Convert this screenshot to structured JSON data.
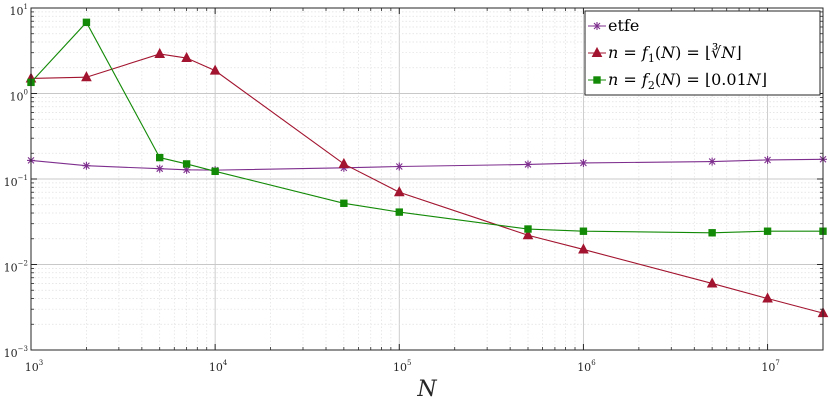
{
  "chart_data": {
    "type": "line",
    "x_scale": "log",
    "y_scale": "log",
    "xlim": [
      1000,
      20000000
    ],
    "ylim": [
      0.001,
      10
    ],
    "grid": true,
    "minor_grid": true,
    "legend_position": "top-right",
    "xlabel": "N",
    "ylabel": "",
    "title": "",
    "x_ticks": [
      {
        "value": 1000,
        "base": "10",
        "exp": "3"
      },
      {
        "value": 10000,
        "base": "10",
        "exp": "4"
      },
      {
        "value": 100000,
        "base": "10",
        "exp": "5"
      },
      {
        "value": 1000000,
        "base": "10",
        "exp": "6"
      },
      {
        "value": 10000000,
        "base": "10",
        "exp": "7"
      }
    ],
    "y_ticks": [
      {
        "value": 0.001,
        "base": "10",
        "exp": "−3"
      },
      {
        "value": 0.01,
        "base": "10",
        "exp": "−2"
      },
      {
        "value": 0.1,
        "base": "10",
        "exp": "−1"
      },
      {
        "value": 1,
        "base": "10",
        "exp": "0"
      },
      {
        "value": 10,
        "base": "10",
        "exp": "1"
      }
    ],
    "series": [
      {
        "name": "etfe",
        "color": "#7e2f8e",
        "marker": "star",
        "x": [
          1000,
          2000,
          5000,
          7000,
          10000,
          50000,
          100000,
          500000,
          1000000,
          5000000,
          10000000,
          20000000
        ],
        "y": [
          0.165,
          0.143,
          0.132,
          0.128,
          0.127,
          0.135,
          0.14,
          0.148,
          0.154,
          0.16,
          0.167,
          0.17
        ]
      },
      {
        "name": "n = f1(N) = floor(cbrt(N))",
        "color": "#a2142f",
        "marker": "triangle",
        "x": [
          1000,
          2000,
          5000,
          7000,
          10000,
          50000,
          100000,
          500000,
          1000000,
          5000000,
          10000000,
          20000000
        ],
        "y": [
          1.5,
          1.55,
          2.9,
          2.6,
          1.85,
          0.15,
          0.07,
          0.022,
          0.015,
          0.006,
          0.004,
          0.0027
        ]
      },
      {
        "name": "n = f2(N) = floor(0.01N)",
        "color": "#138a07",
        "marker": "square",
        "x": [
          1000,
          2000,
          5000,
          7000,
          10000,
          50000,
          100000,
          500000,
          1000000,
          5000000,
          10000000,
          20000000
        ],
        "y": [
          1.35,
          6.8,
          0.178,
          0.15,
          0.123,
          0.052,
          0.041,
          0.026,
          0.0245,
          0.0235,
          0.0245,
          0.0245
        ]
      }
    ]
  },
  "legend": {
    "entries": [
      {
        "parts": [
          {
            "text": "etfe",
            "italic": false
          }
        ]
      },
      {
        "parts": [
          {
            "text": "n",
            "italic": true
          },
          {
            "text": " = ",
            "italic": false
          },
          {
            "text": "f",
            "italic": true
          },
          {
            "text": "1",
            "italic": false,
            "sub": true
          },
          {
            "text": "(",
            "italic": false
          },
          {
            "text": "N",
            "italic": true
          },
          {
            "text": ") = ⌊∛",
            "italic": false
          },
          {
            "text": "N",
            "italic": true
          },
          {
            "text": "⌋",
            "italic": false
          }
        ]
      },
      {
        "parts": [
          {
            "text": "n",
            "italic": true
          },
          {
            "text": " = ",
            "italic": false
          },
          {
            "text": "f",
            "italic": true
          },
          {
            "text": "2",
            "italic": false,
            "sub": true
          },
          {
            "text": "(",
            "italic": false
          },
          {
            "text": "N",
            "italic": true
          },
          {
            "text": ") = ⌊0.01",
            "italic": false
          },
          {
            "text": "N",
            "italic": true
          },
          {
            "text": "⌋",
            "italic": false
          }
        ]
      }
    ]
  }
}
